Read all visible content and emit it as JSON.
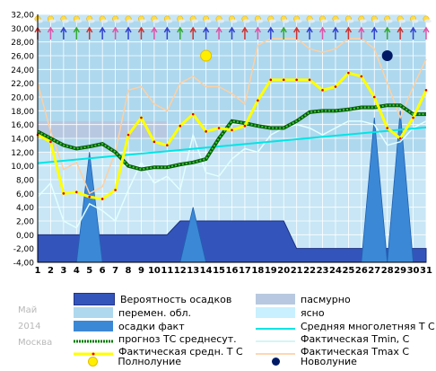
{
  "chart_data": {
    "type": "line",
    "ylim": [
      -4,
      32
    ],
    "yticks": [
      "32,00",
      "30,00",
      "28,00",
      "26,00",
      "24,00",
      "22,00",
      "20,00",
      "18,00",
      "16,00",
      "14,00",
      "12,00",
      "10,00",
      "8,00",
      "6,00",
      "4,00",
      "2,00",
      "0,00",
      "-2,00",
      "-4,00"
    ],
    "days": [
      "1",
      "2",
      "3",
      "4",
      "5",
      "6",
      "7",
      "8",
      "9",
      "10",
      "11",
      "12",
      "13",
      "14",
      "15",
      "16",
      "17",
      "18",
      "19",
      "20",
      "21",
      "22",
      "23",
      "24",
      "25",
      "26",
      "27",
      "28",
      "29",
      "30",
      "31"
    ],
    "series": [
      {
        "name": "Фактическая средн. Т С",
        "color": "#ffff00",
        "values": [
          14.5,
          13.5,
          6.0,
          6.2,
          5.5,
          5.2,
          6.5,
          14.5,
          17.0,
          13.5,
          13.0,
          15.8,
          17.5,
          15.0,
          15.5,
          15.2,
          15.8,
          19.5,
          22.5,
          22.5,
          22.5,
          22.5,
          21.0,
          21.5,
          23.5,
          23.0,
          20.0,
          15.5,
          14.0,
          17.0,
          21.0
        ]
      },
      {
        "name": "прогноз ТС среднесут.",
        "color": "#007700",
        "values": [
          15.0,
          14.0,
          13.0,
          12.5,
          12.8,
          13.2,
          12.0,
          10.0,
          9.5,
          9.8,
          9.8,
          10.2,
          10.5,
          11.0,
          14.0,
          16.5,
          16.2,
          15.8,
          15.5,
          15.5,
          16.5,
          17.8,
          18.0,
          18.0,
          18.2,
          18.5,
          18.5,
          18.8,
          18.8,
          17.5,
          17.5
        ]
      },
      {
        "name": "Средняя многолетняя Т С",
        "color": "#00e5e5",
        "values": [
          10.4,
          15.6
        ]
      },
      {
        "name": "Фактическая Tmin, С",
        "color": "#d9ffff",
        "values": [
          5.5,
          7.5,
          2.0,
          1.0,
          4.5,
          3.5,
          2.0,
          6.5,
          10.5,
          7.5,
          8.5,
          6.5,
          14.5,
          9.0,
          8.5,
          11.0,
          12.5,
          12.0,
          14.5,
          15.5,
          16.0,
          15.5,
          14.5,
          15.5,
          16.5,
          16.5,
          16.0,
          13.0,
          13.5,
          15.5,
          16.5
        ]
      },
      {
        "name": "Фактическая Tmax С",
        "color": "#ffd0a6",
        "values": [
          22.0,
          15.0,
          9.5,
          10.5,
          6.0,
          7.0,
          12.0,
          21.0,
          21.5,
          19.0,
          18.0,
          22.0,
          23.0,
          21.5,
          21.5,
          20.5,
          19.0,
          27.5,
          28.5,
          28.5,
          28.5,
          27.0,
          26.5,
          27.0,
          28.5,
          28.5,
          27.0,
          22.0,
          17.0,
          21.5,
          25.5
        ]
      }
    ],
    "precip_fact": [
      0,
      0,
      0,
      0,
      12,
      0,
      0,
      0,
      0,
      0,
      0,
      0,
      4,
      0,
      0,
      0,
      0,
      0,
      0,
      0,
      0,
      0,
      0,
      0,
      0,
      0,
      17,
      0,
      18,
      0,
      0
    ],
    "precip_prob_blocks": [
      {
        "from": 1,
        "to": 11,
        "value": 0
      },
      {
        "from": 12,
        "to": 20,
        "value": 2
      },
      {
        "from": 21,
        "to": 31,
        "value": -2
      }
    ],
    "overcast_band": {
      "from": 1,
      "to": 11,
      "low": 14,
      "high": 16.5
    },
    "variable_band": {
      "from": 1,
      "to": 31,
      "low": 12,
      "high": 31
    },
    "full_moon_day": 14,
    "new_moon_day": 28,
    "colors": {
      "plot_bg": "#c8e6f5",
      "grid": "#ffffff",
      "prob": "#3355bb",
      "fact_precip": "#3b88d6",
      "overcast": "#b8c8e0",
      "variable": "#aed8ee"
    }
  },
  "legend": {
    "prob": "Вероятность осадков",
    "overcast": "пасмурно",
    "variable": "перемен. обл.",
    "clear": "ясно",
    "fact_precip": "осадки факт",
    "avg": "Средняя многолетняя Т С",
    "forecast": "прогноз ТС среднесут.",
    "tmin": "Фактическая Tmin, С",
    "tavg": "Фактическая средн. Т С",
    "tmax": "Фактическая Tmax С",
    "full": "Полнолуние",
    "new": "Новолуние"
  },
  "side": {
    "month": "Май",
    "year": "2014",
    "city": "Москва"
  }
}
